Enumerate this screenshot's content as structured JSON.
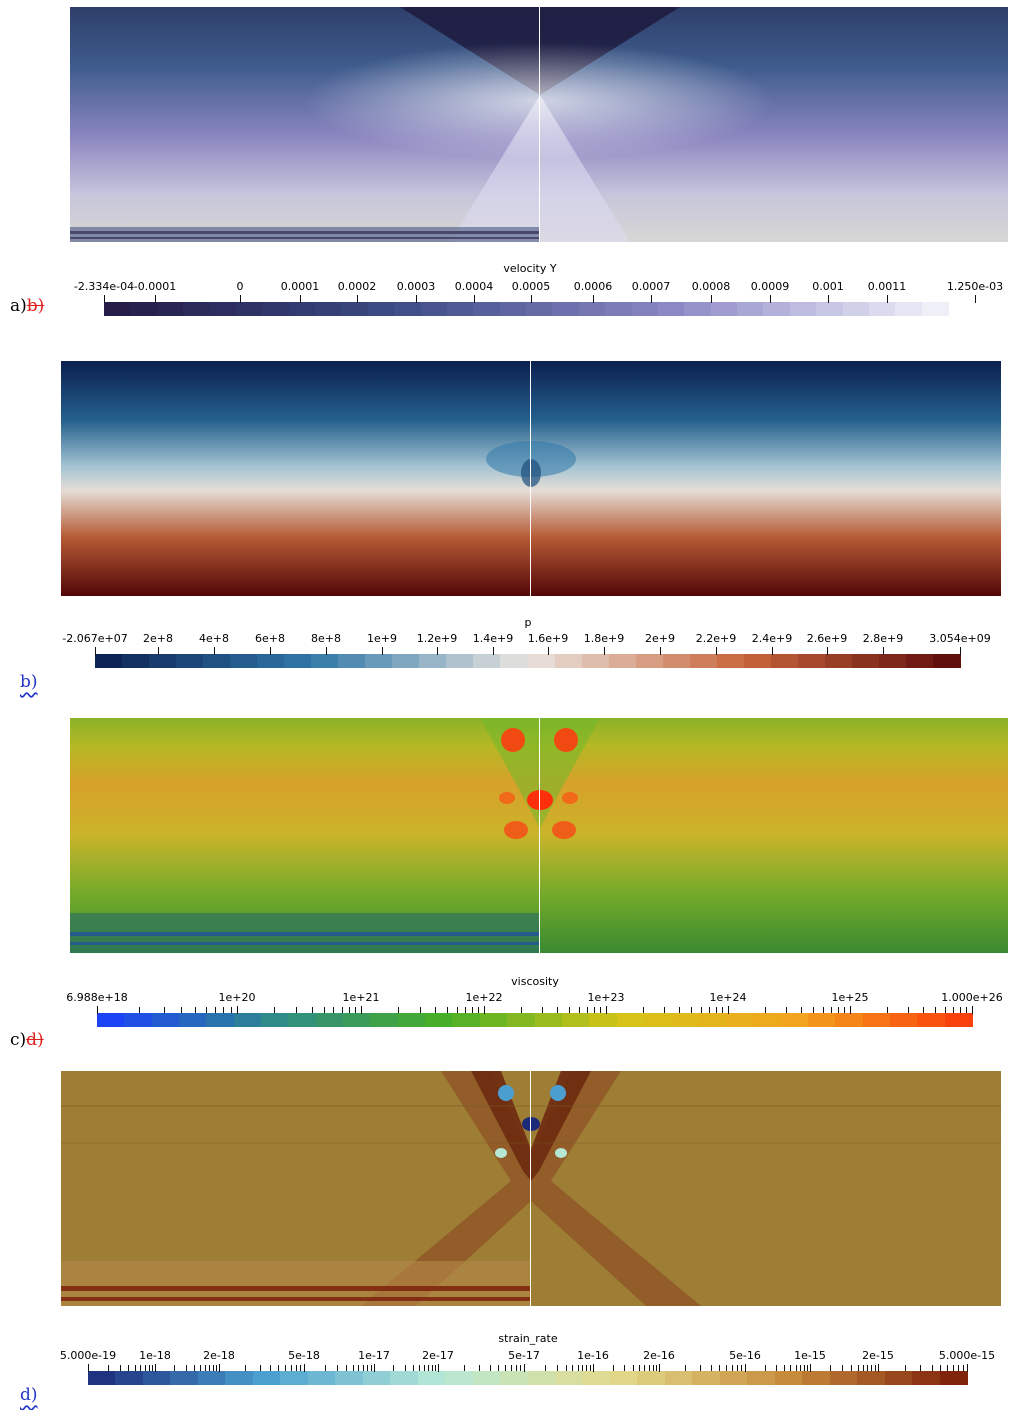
{
  "panels": [
    {
      "id": "a",
      "colorbar": {
        "title": "velocity Y",
        "tick_labels": [
          "-2.334e-04",
          "-0.0001",
          "0",
          "0.0001",
          "0.0002",
          "0.0003",
          "0.0004",
          "0.0005",
          "0.0006",
          "0.0007",
          "0.0008",
          "0.0009",
          "0.001",
          "0.0011",
          "1.250e-03"
        ],
        "colors": [
          "#241a45",
          "#3a4a82",
          "#8a86c4",
          "#f4f4fb"
        ]
      },
      "label": {
        "text": "a)",
        "struck": "b)"
      }
    },
    {
      "id": "b",
      "colorbar": {
        "title": "p",
        "tick_labels": [
          "-2.067e+07",
          "2e+8",
          "4e+8",
          "6e+8",
          "8e+8",
          "1e+9",
          "1.2e+9",
          "1.4e+9",
          "1.6e+9",
          "1.8e+9",
          "2e+9",
          "2.2e+9",
          "2.4e+9",
          "2.6e+9",
          "2.8e+9",
          "3.054e+09"
        ],
        "colors": [
          "#0b1f50",
          "#2f78a8",
          "#e9e4df",
          "#c8663c",
          "#5a0a0a"
        ]
      },
      "label": {
        "text": "b)"
      }
    },
    {
      "id": "c",
      "colorbar": {
        "title": "viscosity",
        "tick_labels": [
          "6.988e+18",
          "1e+20",
          "1e+21",
          "1e+22",
          "1e+23",
          "1e+24",
          "1e+25",
          "1.000e+26"
        ],
        "colors": [
          "#1a3dff",
          "#2e8a8a",
          "#48b025",
          "#d6c419",
          "#f2a41e",
          "#fb3a0c"
        ]
      },
      "label": {
        "text": "c)",
        "struck": "d)"
      }
    },
    {
      "id": "d",
      "colorbar": {
        "title": "strain_rate",
        "tick_labels": [
          "5.000e-19",
          "1e-18",
          "2e-18",
          "5e-18",
          "1e-17",
          "2e-17",
          "5e-17",
          "1e-16",
          "2e-16",
          "5e-16",
          "1e-15",
          "2e-15",
          "5.000e-15"
        ],
        "colors": [
          "#1c2a7a",
          "#4a9fd0",
          "#b6e8d6",
          "#e3db8c",
          "#c78a3b",
          "#7a1b08"
        ]
      },
      "label": {
        "text": "d)"
      }
    }
  ]
}
